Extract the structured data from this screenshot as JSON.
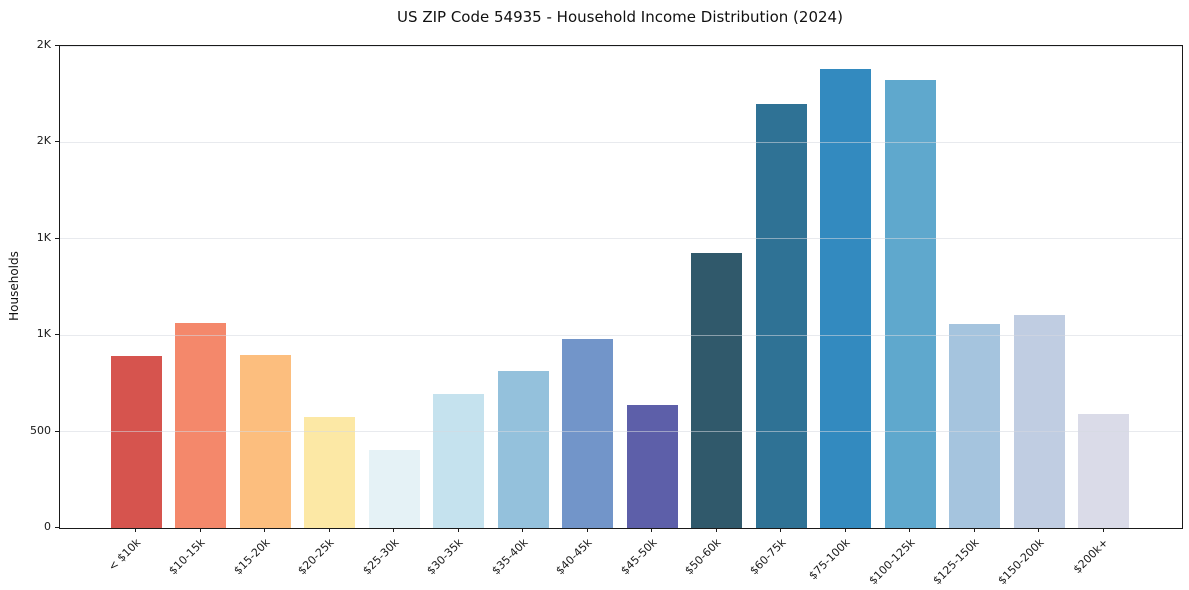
{
  "chart_data": {
    "type": "bar",
    "title": "US ZIP Code 54935 - Household Income Distribution (2024)",
    "xlabel": "",
    "ylabel": "Households",
    "ylim": [
      0,
      2500
    ],
    "grid": "horizontal-y",
    "legend": "none",
    "categories": [
      "< $10k",
      "$10-15k",
      "$15-20k",
      "$20-25k",
      "$25-30k",
      "$30-35k",
      "$35-40k",
      "$40-45k",
      "$45-50k",
      "$50-60k",
      "$60-75k",
      "$75-100k",
      "$100-125k",
      "$125-150k",
      "$150-200k",
      "$200k+"
    ],
    "values": [
      890,
      1065,
      895,
      577,
      406,
      693,
      815,
      978,
      638,
      1424,
      2198,
      2381,
      2324,
      1058,
      1104,
      589
    ],
    "bar_colors": [
      "#d6544e",
      "#f4886b",
      "#fcbe7e",
      "#fce8a5",
      "#e5f2f6",
      "#c5e2ee",
      "#94c1dc",
      "#7295c9",
      "#5d5fa9",
      "#30596b",
      "#2f7295",
      "#338abf",
      "#5fa8cd",
      "#a5c4de",
      "#c0cde2",
      "#dadbe8"
    ],
    "yticks": [
      {
        "value": 0,
        "label": "0"
      },
      {
        "value": 500,
        "label": "500"
      },
      {
        "value": 1000,
        "label": "1K"
      },
      {
        "value": 1500,
        "label": "1K"
      },
      {
        "value": 2000,
        "label": "2K"
      },
      {
        "value": 2500,
        "label": "2K"
      }
    ],
    "axis_color": "#1a1a1a",
    "grid_color": "#d6d9e0"
  }
}
